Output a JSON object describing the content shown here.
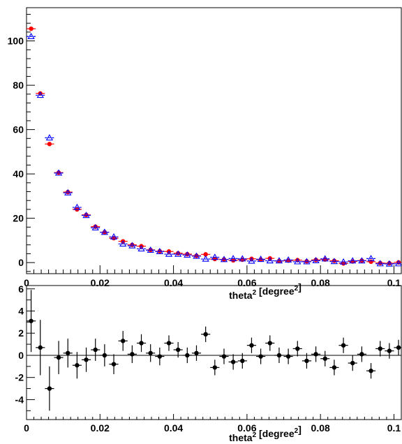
{
  "chart_data": [
    {
      "type": "scatter",
      "xlabel": "theta",
      "xlabel_sup": "2",
      "xlabel_unit": "[degree",
      "xlabel_unit_sup": "2",
      "xlabel_close": "]",
      "xlim": [
        0,
        0.102
      ],
      "ylim": [
        -5,
        115
      ],
      "xticks": [
        0,
        0.02,
        0.04,
        0.06,
        0.08,
        0.1
      ],
      "xtick_labels": [
        "0",
        "0.02",
        "0.04",
        "0.06",
        "0.08",
        "0.1"
      ],
      "yticks": [
        0,
        20,
        40,
        60,
        80,
        100
      ],
      "ytick_labels": [
        "0",
        "20",
        "40",
        "60",
        "80",
        "100"
      ],
      "grid": false,
      "x_bin_half_width": 0.00125,
      "series": [
        {
          "marker": "filled-circle",
          "color": "#ff0000",
          "x": [
            0.00125,
            0.00375,
            0.00625,
            0.00875,
            0.01125,
            0.01375,
            0.01625,
            0.01875,
            0.02125,
            0.02375,
            0.02625,
            0.02875,
            0.03125,
            0.03375,
            0.03625,
            0.03875,
            0.04125,
            0.04375,
            0.04625,
            0.04875,
            0.05125,
            0.05375,
            0.05625,
            0.05875,
            0.06125,
            0.06375,
            0.06625,
            0.06875,
            0.07125,
            0.07375,
            0.07625,
            0.07875,
            0.08125,
            0.08375,
            0.08625,
            0.08875,
            0.09125,
            0.09375,
            0.09625,
            0.09875,
            0.10125
          ],
          "y": [
            105.5,
            76.3,
            53.5,
            40.6,
            31.8,
            24.0,
            21.5,
            16.2,
            13.7,
            11.0,
            9.6,
            8.0,
            7.4,
            5.7,
            5.1,
            5.0,
            4.2,
            3.8,
            3.1,
            3.7,
            1.6,
            1.4,
            1.0,
            1.3,
            1.7,
            1.3,
            1.9,
            0.7,
            0.9,
            1.1,
            0.6,
            1.2,
            1.4,
            0.8,
            -0.4,
            0.5,
            0.9,
            0.4,
            -0.2,
            -0.3,
            0.1
          ]
        },
        {
          "marker": "open-triangle",
          "color": "#0000ff",
          "x": [
            0.00125,
            0.00375,
            0.00625,
            0.00875,
            0.01125,
            0.01375,
            0.01625,
            0.01875,
            0.02125,
            0.02375,
            0.02625,
            0.02875,
            0.03125,
            0.03375,
            0.03625,
            0.03875,
            0.04125,
            0.04375,
            0.04625,
            0.04875,
            0.05125,
            0.05375,
            0.05625,
            0.05875,
            0.06125,
            0.06375,
            0.06625,
            0.06875,
            0.07125,
            0.07375,
            0.07625,
            0.07875,
            0.08125,
            0.08375,
            0.08625,
            0.08875,
            0.09125,
            0.09375,
            0.09625,
            0.09875,
            0.10125
          ],
          "y": [
            102.0,
            75.5,
            56.3,
            40.4,
            31.5,
            24.9,
            21.3,
            15.7,
            13.7,
            11.6,
            8.4,
            7.6,
            6.2,
            5.6,
            5.0,
            3.8,
            3.8,
            3.4,
            2.9,
            1.6,
            2.4,
            1.4,
            1.8,
            1.7,
            0.7,
            1.5,
            0.8,
            0.8,
            1.2,
            0.4,
            0.4,
            0.9,
            1.7,
            0.5,
            0.3,
            0.8,
            0.8,
            1.8,
            -0.5,
            -0.6,
            -0.5
          ]
        }
      ]
    },
    {
      "type": "scatter",
      "xlabel": "theta",
      "xlabel_sup": "2",
      "xlabel_unit": "[degree",
      "xlabel_unit_sup": "2",
      "xlabel_close": "]",
      "xlim": [
        0,
        0.102
      ],
      "ylim": [
        -5.8,
        6.3
      ],
      "xticks": [
        0,
        0.02,
        0.04,
        0.06,
        0.08,
        0.1
      ],
      "xtick_labels": [
        "0",
        "0.02",
        "0.04",
        "0.06",
        "0.08",
        "0.1"
      ],
      "yticks": [
        -4,
        -2,
        0,
        2,
        4,
        6
      ],
      "ytick_labels": [
        "-4",
        "-2",
        "0",
        "2",
        "4",
        "6"
      ],
      "grid": false,
      "reference_line_y": 0,
      "x_bin_half_width": 0.00125,
      "series": [
        {
          "marker": "filled-circle",
          "color": "#000000",
          "x": [
            0.00125,
            0.00375,
            0.00625,
            0.00875,
            0.01125,
            0.01375,
            0.01625,
            0.01875,
            0.02125,
            0.02375,
            0.02625,
            0.02875,
            0.03125,
            0.03375,
            0.03625,
            0.03875,
            0.04125,
            0.04375,
            0.04625,
            0.04875,
            0.05125,
            0.05375,
            0.05625,
            0.05875,
            0.06125,
            0.06375,
            0.06625,
            0.06875,
            0.07125,
            0.07375,
            0.07625,
            0.07875,
            0.08125,
            0.08375,
            0.08625,
            0.08875,
            0.09125,
            0.09375,
            0.09625,
            0.09875,
            0.10125
          ],
          "y": [
            3.1,
            0.7,
            -3.0,
            -0.2,
            0.2,
            -0.9,
            -0.4,
            0.5,
            0.0,
            -0.8,
            1.3,
            0.1,
            1.1,
            0.2,
            -0.1,
            1.1,
            0.5,
            0.0,
            0.2,
            1.9,
            -1.1,
            -0.1,
            -0.6,
            -0.5,
            0.9,
            -0.1,
            1.1,
            0.0,
            -0.1,
            0.6,
            -0.5,
            0.1,
            -0.3,
            -1.1,
            0.9,
            -0.7,
            0.1,
            -1.4,
            0.6,
            0.4,
            0.7
          ],
          "y_err": [
            2.8,
            2.5,
            2.0,
            1.5,
            1.3,
            1.2,
            1.1,
            1.0,
            1.0,
            0.9,
            0.9,
            0.8,
            0.8,
            0.8,
            0.8,
            0.7,
            0.7,
            0.7,
            0.7,
            0.7,
            0.7,
            0.7,
            0.7,
            0.7,
            0.7,
            0.7,
            0.7,
            0.7,
            0.7,
            0.7,
            0.7,
            0.7,
            0.7,
            0.7,
            0.7,
            0.7,
            0.7,
            0.7,
            0.7,
            0.7,
            0.7
          ]
        }
      ]
    }
  ]
}
